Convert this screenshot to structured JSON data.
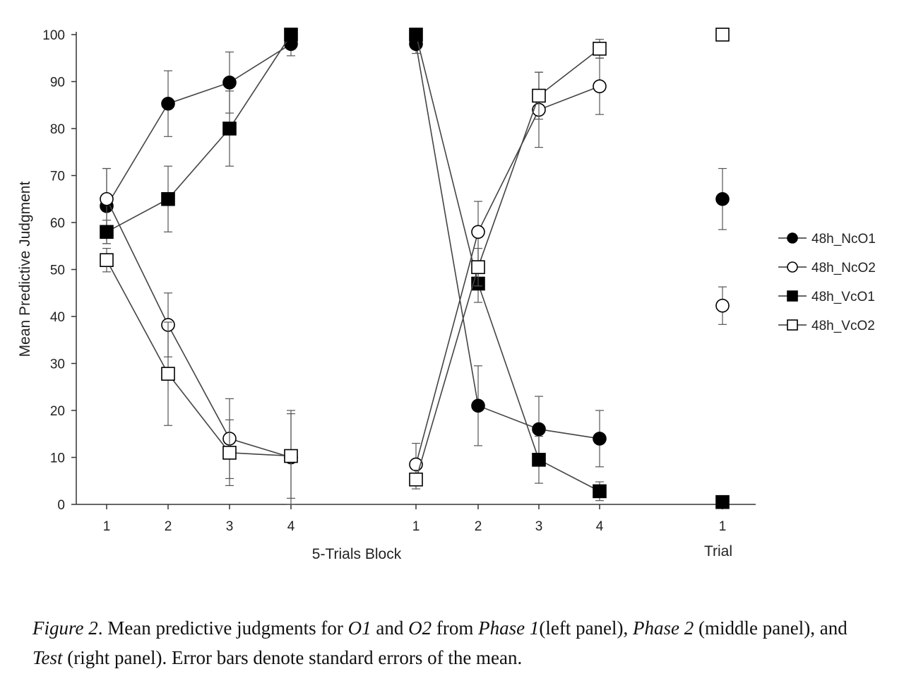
{
  "chart_data": {
    "type": "line",
    "ylabel": "Mean Predictive Judgment",
    "ylim": [
      0,
      100
    ],
    "yticks": [
      "0",
      "10",
      "20",
      "30",
      "40",
      "50",
      "60",
      "70",
      "80",
      "90",
      "100"
    ],
    "panels": [
      {
        "panel": "Phase 1",
        "xlabel": "5-Trials Block",
        "x": [
          "1",
          "2",
          "3",
          "4"
        ],
        "series": [
          {
            "name": "48h_NcO1",
            "values": [
              63.5,
              85.3,
              89.8,
              98.0
            ],
            "err": [
              8.0,
              7.0,
              6.5,
              2.5
            ]
          },
          {
            "name": "48h_NcO2",
            "values": [
              65.0,
              38.2,
              14.0,
              10.0
            ],
            "err": [
              6.5,
              6.8,
              8.5,
              10.0
            ]
          },
          {
            "name": "48h_VcO1",
            "values": [
              58.0,
              65.0,
              80.0,
              100.0
            ],
            "err": [
              2.5,
              7.0,
              8.0,
              1.0
            ]
          },
          {
            "name": "48h_VcO2",
            "values": [
              52.0,
              27.8,
              11.0,
              10.3
            ],
            "err": [
              2.5,
              11.0,
              7.0,
              9.0
            ]
          }
        ]
      },
      {
        "panel": "Phase 2",
        "xlabel": "5-Trials Block",
        "x": [
          "1",
          "2",
          "3",
          "4"
        ],
        "series": [
          {
            "name": "48h_NcO1",
            "values": [
              98.0,
              21.0,
              16.0,
              14.0
            ],
            "err": [
              2.0,
              8.5,
              7.0,
              6.0
            ]
          },
          {
            "name": "48h_NcO2",
            "values": [
              8.5,
              58.0,
              84.0,
              89.0
            ],
            "err": [
              4.5,
              6.5,
              8.0,
              6.0
            ]
          },
          {
            "name": "48h_VcO1",
            "values": [
              100.0,
              47.0,
              9.5,
              2.8
            ],
            "err": [
              1.0,
              4.0,
              5.0,
              2.0
            ]
          },
          {
            "name": "48h_VcO2",
            "values": [
              5.3,
              50.5,
              87.0,
              97.0
            ],
            "err": [
              2.0,
              4.0,
              5.0,
              2.0
            ]
          }
        ]
      },
      {
        "panel": "Test",
        "xlabel": "Trial",
        "x": [
          "1"
        ],
        "series": [
          {
            "name": "48h_NcO1",
            "values": [
              65.0
            ],
            "err": [
              6.5
            ]
          },
          {
            "name": "48h_NcO2",
            "values": [
              42.3
            ],
            "err": [
              4.0
            ]
          },
          {
            "name": "48h_VcO1",
            "values": [
              0.5
            ],
            "err": [
              0
            ]
          },
          {
            "name": "48h_VcO2",
            "values": [
              100.0
            ],
            "err": [
              0
            ]
          }
        ]
      }
    ],
    "legend": {
      "placement": "right",
      "entries": [
        {
          "name": "48h_NcO1",
          "marker": "filled-circle"
        },
        {
          "name": "48h_NcO2",
          "marker": "open-circle"
        },
        {
          "name": "48h_VcO1",
          "marker": "filled-square"
        },
        {
          "name": "48h_VcO2",
          "marker": "open-square"
        }
      ]
    },
    "grid": false,
    "colors": {
      "line": "#444444",
      "marker": "#000000",
      "fill_open": "#ffffff"
    }
  },
  "caption": {
    "label": "Figure 2",
    "parts": [
      {
        "text": "Figure 2",
        "italic": true
      },
      {
        "text": ". Mean predictive judgments for ",
        "italic": false
      },
      {
        "text": "O1",
        "italic": true
      },
      {
        "text": " and ",
        "italic": false
      },
      {
        "text": "O2",
        "italic": true
      },
      {
        "text": " from ",
        "italic": false
      },
      {
        "text": "Phase 1",
        "italic": true
      },
      {
        "text": "(left panel), ",
        "italic": false
      },
      {
        "text": "Phase 2",
        "italic": true
      },
      {
        "text": " (middle panel), and ",
        "italic": false
      },
      {
        "text": "Test",
        "italic": true
      },
      {
        "text": " (right panel). Error bars denote standard errors of the mean.",
        "italic": false
      }
    ]
  }
}
